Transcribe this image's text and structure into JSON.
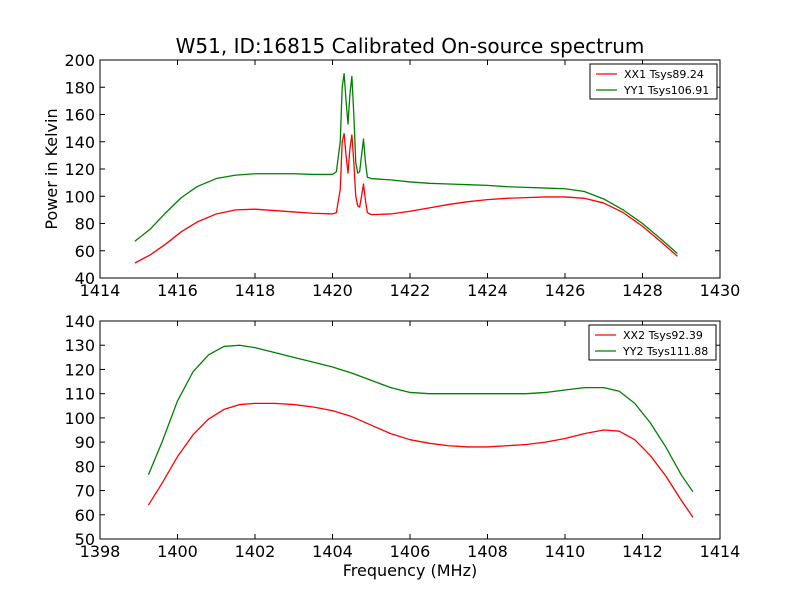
{
  "title": "W51, ID:16815 Calibrated On-source spectrum",
  "chart_data": [
    {
      "type": "line",
      "ylabel": "Power in Kelvin",
      "xlabel": "",
      "xlim": [
        1414,
        1430
      ],
      "ylim": [
        40,
        200
      ],
      "xticks": [
        1414,
        1416,
        1418,
        1420,
        1422,
        1424,
        1426,
        1428,
        1430
      ],
      "yticks": [
        40,
        60,
        80,
        100,
        120,
        140,
        160,
        180,
        200
      ],
      "legend_position": "top-right",
      "series": [
        {
          "name": "XX1 Tsys89.24",
          "color": "#ff0000",
          "x": [
            1414.9,
            1415.3,
            1415.7,
            1416.1,
            1416.5,
            1417.0,
            1417.5,
            1418.0,
            1418.5,
            1419.0,
            1419.5,
            1420.0,
            1420.1,
            1420.2,
            1420.25,
            1420.3,
            1420.35,
            1420.4,
            1420.45,
            1420.5,
            1420.55,
            1420.6,
            1420.65,
            1420.7,
            1420.75,
            1420.8,
            1420.85,
            1420.9,
            1421.0,
            1421.5,
            1422.0,
            1422.5,
            1423.0,
            1423.5,
            1424.0,
            1424.5,
            1425.0,
            1425.5,
            1426.0,
            1426.5,
            1427.0,
            1427.5,
            1428.0,
            1428.5,
            1428.9
          ],
          "y": [
            51,
            57,
            65,
            74,
            81,
            87,
            90,
            90.5,
            89.5,
            88.5,
            87.5,
            87,
            88,
            105,
            140,
            146,
            130,
            117,
            135,
            145,
            125,
            100,
            93,
            92,
            100,
            109,
            97,
            88,
            86.5,
            87,
            89,
            91.5,
            94,
            96,
            97.5,
            98.5,
            99,
            99.5,
            99.5,
            98.5,
            95,
            88,
            78,
            66,
            56
          ]
        },
        {
          "name": "YY1 Tsys106.91",
          "color": "#008000",
          "x": [
            1414.9,
            1415.3,
            1415.7,
            1416.1,
            1416.5,
            1417.0,
            1417.5,
            1418.0,
            1418.5,
            1419.0,
            1419.5,
            1420.0,
            1420.1,
            1420.2,
            1420.25,
            1420.3,
            1420.35,
            1420.4,
            1420.45,
            1420.5,
            1420.55,
            1420.6,
            1420.65,
            1420.7,
            1420.75,
            1420.8,
            1420.85,
            1420.9,
            1421.0,
            1421.5,
            1422.0,
            1422.5,
            1423.0,
            1423.5,
            1424.0,
            1424.5,
            1425.0,
            1425.5,
            1426.0,
            1426.5,
            1427.0,
            1427.5,
            1428.0,
            1428.5,
            1428.9
          ],
          "y": [
            67,
            76,
            88,
            99,
            107,
            113,
            115.5,
            116.5,
            116.5,
            116.5,
            116,
            116,
            118,
            140,
            180,
            190,
            170,
            153,
            175,
            188,
            160,
            125,
            117,
            118,
            130,
            142,
            125,
            114,
            113,
            112,
            110.5,
            109.5,
            109,
            108.5,
            108,
            107,
            106.5,
            106,
            105.5,
            103.5,
            98,
            90,
            80,
            68,
            58
          ]
        }
      ]
    },
    {
      "type": "line",
      "ylabel": "",
      "xlabel": "Frequency (MHz)",
      "xlim": [
        1398,
        1414
      ],
      "ylim": [
        50,
        140
      ],
      "xticks": [
        1398,
        1400,
        1402,
        1404,
        1406,
        1408,
        1410,
        1412,
        1414
      ],
      "yticks": [
        50,
        60,
        70,
        80,
        90,
        100,
        110,
        120,
        130,
        140
      ],
      "legend_position": "top-right",
      "series": [
        {
          "name": "XX2 Tsys92.39",
          "color": "#ff0000",
          "x": [
            1399.25,
            1399.6,
            1400.0,
            1400.4,
            1400.8,
            1401.2,
            1401.6,
            1402.0,
            1402.5,
            1403.0,
            1403.5,
            1404.0,
            1404.5,
            1405.0,
            1405.5,
            1406.0,
            1406.5,
            1407.0,
            1407.5,
            1408.0,
            1408.5,
            1409.0,
            1409.5,
            1410.0,
            1410.5,
            1411.0,
            1411.4,
            1411.8,
            1412.2,
            1412.6,
            1413.0,
            1413.3
          ],
          "y": [
            64,
            73,
            84,
            93,
            99.5,
            103.5,
            105.5,
            106,
            106,
            105.5,
            104.5,
            103,
            100.5,
            97,
            93.5,
            91,
            89.5,
            88.5,
            88,
            88,
            88.5,
            89,
            90,
            91.5,
            93.5,
            95,
            94.5,
            91,
            84.5,
            76,
            66,
            59
          ]
        },
        {
          "name": "YY2 Tsys111.88",
          "color": "#008000",
          "x": [
            1399.25,
            1399.6,
            1400.0,
            1400.4,
            1400.8,
            1401.2,
            1401.6,
            1402.0,
            1402.5,
            1403.0,
            1403.5,
            1404.0,
            1404.5,
            1405.0,
            1405.5,
            1406.0,
            1406.5,
            1407.0,
            1407.5,
            1408.0,
            1408.5,
            1409.0,
            1409.5,
            1410.0,
            1410.5,
            1411.0,
            1411.4,
            1411.8,
            1412.2,
            1412.6,
            1413.0,
            1413.3
          ],
          "y": [
            76.5,
            90,
            107,
            119,
            126,
            129.5,
            130,
            129,
            127,
            125,
            123,
            121,
            118.5,
            115.5,
            112.5,
            110.5,
            110,
            110,
            110,
            110,
            110,
            110,
            110.5,
            111.5,
            112.5,
            112.5,
            111,
            106,
            98,
            88,
            76.5,
            69.5
          ]
        }
      ]
    }
  ]
}
